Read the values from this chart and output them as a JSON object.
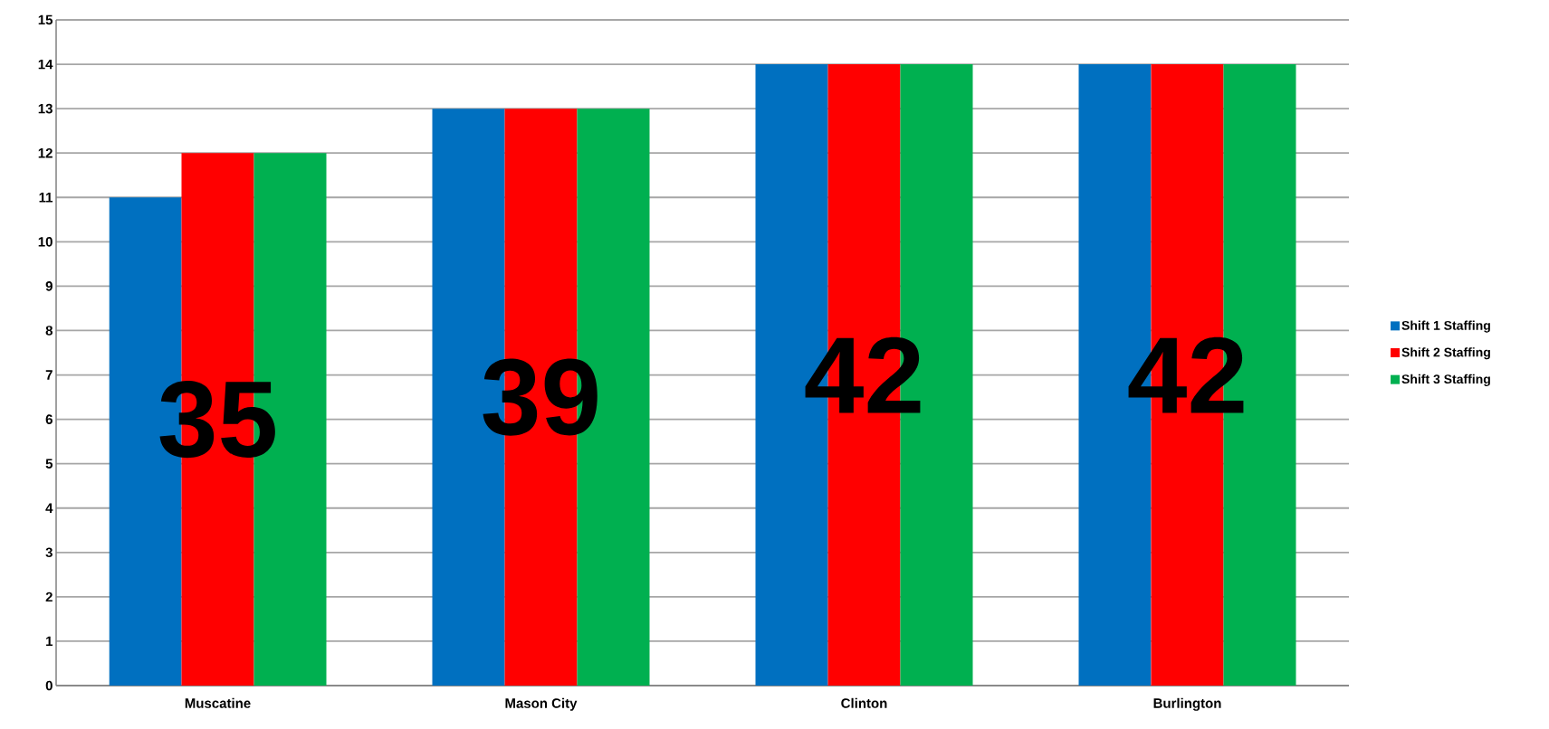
{
  "chart_data": {
    "type": "bar",
    "categories": [
      "Muscatine",
      "Mason City",
      "Clinton",
      "Burlington"
    ],
    "series": [
      {
        "name": "Shift 1 Staffing",
        "color": "#0070c0",
        "values": [
          11,
          13,
          14,
          14
        ]
      },
      {
        "name": "Shift 2 Staffing",
        "color": "#ff0000",
        "values": [
          12,
          13,
          14,
          14
        ]
      },
      {
        "name": "Shift 3 Staffing",
        "color": "#00b050",
        "values": [
          12,
          13,
          14,
          14
        ]
      }
    ],
    "ylim": [
      0,
      15
    ],
    "yticks": [
      0,
      1,
      2,
      3,
      4,
      5,
      6,
      7,
      8,
      9,
      10,
      11,
      12,
      13,
      14,
      15
    ],
    "grid": "y",
    "legend": "right",
    "totals": [
      "35",
      "39",
      "42",
      "42"
    ]
  }
}
